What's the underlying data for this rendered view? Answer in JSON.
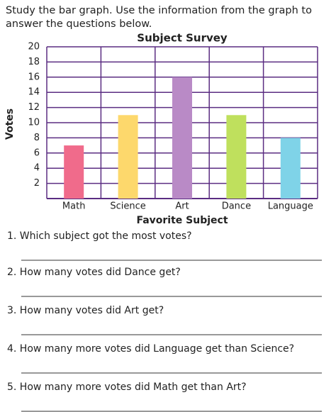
{
  "instructions": "Study the bar graph. Use the information from the graph to answer the questions below.",
  "chart_data": {
    "type": "bar",
    "title": "Subject Survey",
    "x_label": "Favorite Subject",
    "y_label": "Votes",
    "categories": [
      "Math",
      "Science",
      "Art",
      "Dance",
      "Language"
    ],
    "values": [
      7,
      11,
      16,
      11,
      8
    ],
    "colors": [
      "#f06b8b",
      "#fdd86c",
      "#b98ac6",
      "#bfe05d",
      "#7fd3e8"
    ],
    "ylim": [
      0,
      20
    ],
    "yticks": [
      2,
      4,
      6,
      8,
      10,
      12,
      14,
      16,
      18,
      20
    ],
    "grid": true
  },
  "questions": [
    "1. Which subject got the most votes?",
    "2. How many votes did Dance get?",
    "3. How many votes did Art get?",
    "4. How many more votes did Language get than Science?",
    "5. How many more votes did Math get than Art?"
  ]
}
